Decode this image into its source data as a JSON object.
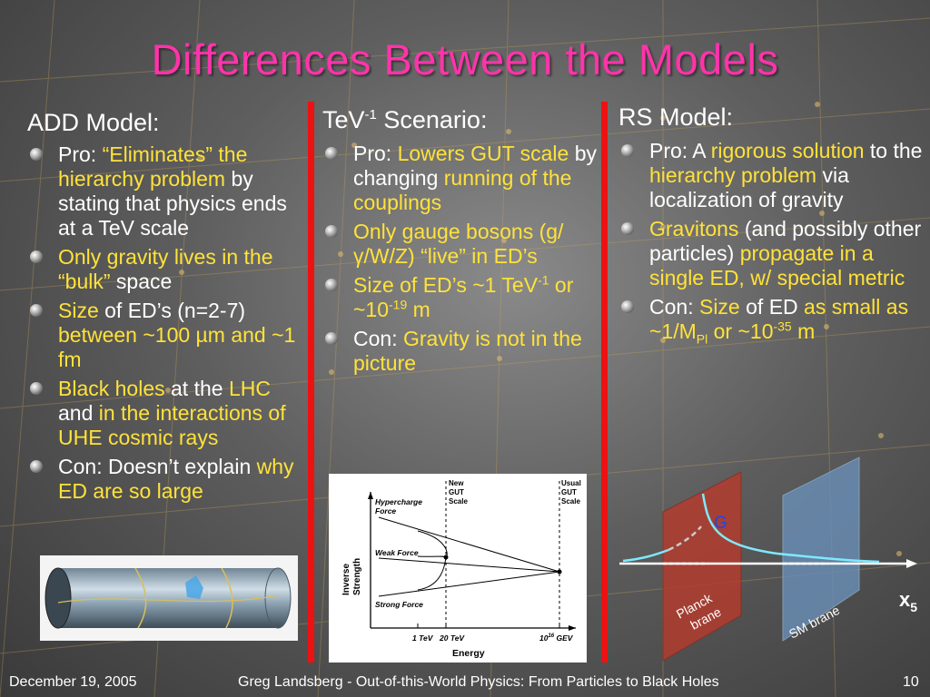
{
  "title": "Differences Between the Models",
  "add": {
    "heading": "ADD Model:",
    "b1": {
      "pre": "Pro: ",
      "y": "“Eliminates” the hierarchy problem",
      "post": " by stating that physics ends at a TeV scale"
    },
    "b2": {
      "y": "Only gravity lives in the “bulk”",
      "post": " space"
    },
    "b3": {
      "y1": "Size",
      "mid": " of ED’s (n=2-7) ",
      "y2": "between ~100 µm and ~1 fm"
    },
    "b4": {
      "y1": "Black holes",
      "m1": " at the ",
      "y2": "LHC",
      "m2": " and ",
      "y3": "in the interactions of UHE cosmic rays"
    },
    "b5": {
      "pre": "Con: Doesn’t explain ",
      "y": "why ED are so large"
    }
  },
  "tev": {
    "heading_pre": "TeV",
    "heading_sup": "-1",
    "heading_post": " Scenario:",
    "b1": {
      "pre": "Pro: ",
      "y1": "Lowers GUT scale",
      "mid": " by changing ",
      "y2": "running of the couplings"
    },
    "b2": {
      "y": "Only gauge bosons (g/γ/W/Z) “live” in ED’s"
    },
    "b3": {
      "y1": "Size of ED’s ~1 TeV",
      "sup1": "-1",
      "y2": " or ~10",
      "sup2": "-19",
      "y3": " m"
    },
    "b4": {
      "pre": "Con: ",
      "y": "Gravity is not in the picture"
    }
  },
  "rs": {
    "heading": "RS Model:",
    "b1": {
      "pre": "Pro: A ",
      "y1": "rigorous solution",
      "m1": " to the ",
      "y2": "hierarchy problem",
      "post": " via localization of gravity"
    },
    "b2": {
      "y1": "Gravitons",
      "mid": " (and possibly other particles) ",
      "y2": "propagate in a single ED, w/ special metric"
    },
    "b3": {
      "pre": "Con: ",
      "y1": "Size",
      "m1": " of ED ",
      "y2": "as small as ~1/M",
      "sub": "Pl",
      "y3": " or ~10",
      "sup": "-35",
      "y4": " m"
    }
  },
  "gut_figure": {
    "new_gut": [
      "New",
      "GUT",
      "Scale"
    ],
    "usual_gut": [
      "Usual",
      "GUT",
      "Scale"
    ],
    "hypercharge": [
      "Hypercharge",
      "Force"
    ],
    "weak": "Weak Force",
    "strong": "Strong Force",
    "yaxis": [
      "Inverse",
      "Strength"
    ],
    "x1": "1 TeV",
    "x2": "20 TeV",
    "x3_base": "10",
    "x3_sup": "16",
    "x3_unit": " GEV",
    "xlabel": "Energy"
  },
  "brane_figure": {
    "g_label": "G",
    "planck": [
      "Planck",
      "brane"
    ],
    "sm": "SM brane",
    "x5_base": "x",
    "x5_sub": "5"
  },
  "footer": {
    "date": "December 19, 2005",
    "center": "Greg Landsberg - Out-of-this-World Physics: From Particles to Black Holes",
    "page": "10"
  },
  "colors": {
    "title": "#ff33aa",
    "accent": "#ffe23a",
    "divider": "#ee1111"
  }
}
